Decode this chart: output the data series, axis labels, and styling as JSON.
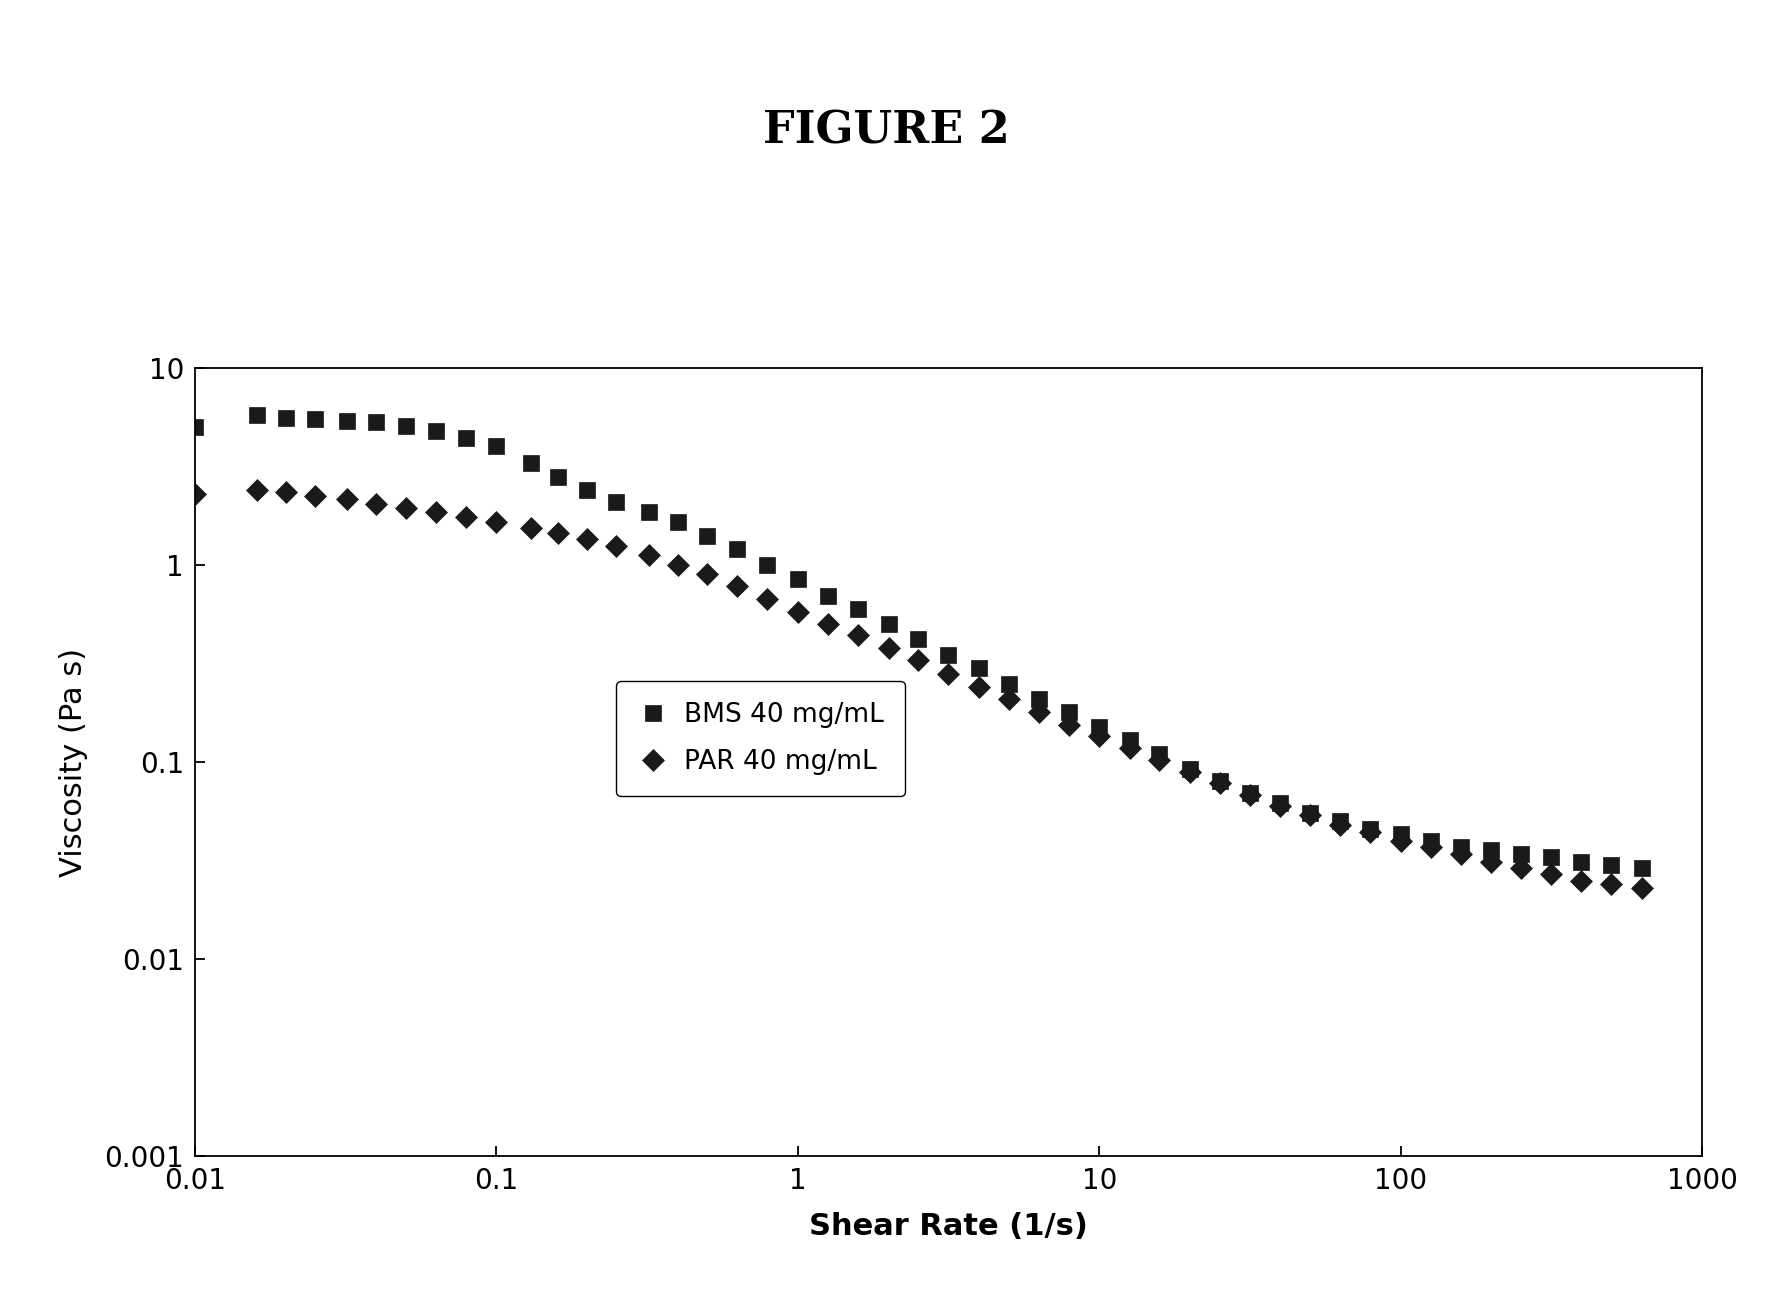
{
  "title": "FIGURE 2",
  "xlabel": "Shear Rate (1/s)",
  "ylabel": "Viscosity (Pa s)",
  "xlim": [
    0.01,
    1000
  ],
  "ylim": [
    0.001,
    10
  ],
  "background_color": "#ffffff",
  "bms_label": "BMS 40 mg/mL",
  "par_label": "PAR 40 mg/mL",
  "bms_color": "#1a1a1a",
  "par_color": "#1a1a1a",
  "bms_x": [
    0.01,
    0.016,
    0.02,
    0.025,
    0.032,
    0.04,
    0.05,
    0.063,
    0.079,
    0.1,
    0.13,
    0.16,
    0.2,
    0.25,
    0.32,
    0.4,
    0.5,
    0.63,
    0.79,
    1.0,
    1.26,
    1.58,
    2.0,
    2.51,
    3.16,
    3.98,
    5.01,
    6.31,
    7.94,
    10.0,
    12.6,
    15.8,
    20.0,
    25.1,
    31.6,
    39.8,
    50.1,
    63.1,
    79.4,
    100,
    126,
    158,
    200,
    251,
    316,
    398,
    500,
    630
  ],
  "bms_y": [
    5.0,
    5.8,
    5.6,
    5.5,
    5.4,
    5.3,
    5.1,
    4.8,
    4.4,
    4.0,
    3.3,
    2.8,
    2.4,
    2.1,
    1.85,
    1.65,
    1.4,
    1.2,
    1.0,
    0.85,
    0.7,
    0.6,
    0.5,
    0.42,
    0.35,
    0.3,
    0.25,
    0.21,
    0.18,
    0.15,
    0.13,
    0.11,
    0.092,
    0.08,
    0.07,
    0.062,
    0.055,
    0.05,
    0.046,
    0.043,
    0.04,
    0.037,
    0.036,
    0.034,
    0.033,
    0.031,
    0.03,
    0.029
  ],
  "par_x": [
    0.01,
    0.016,
    0.02,
    0.025,
    0.032,
    0.04,
    0.05,
    0.063,
    0.079,
    0.1,
    0.13,
    0.16,
    0.2,
    0.25,
    0.32,
    0.4,
    0.5,
    0.63,
    0.79,
    1.0,
    1.26,
    1.58,
    2.0,
    2.51,
    3.16,
    3.98,
    5.01,
    6.31,
    7.94,
    10.0,
    12.6,
    15.8,
    20.0,
    25.1,
    31.6,
    39.8,
    50.1,
    63.1,
    79.4,
    100,
    126,
    158,
    200,
    251,
    316,
    398,
    500,
    630
  ],
  "par_y": [
    2.3,
    2.4,
    2.35,
    2.25,
    2.15,
    2.05,
    1.95,
    1.85,
    1.75,
    1.65,
    1.55,
    1.45,
    1.35,
    1.25,
    1.12,
    1.0,
    0.9,
    0.78,
    0.67,
    0.58,
    0.5,
    0.44,
    0.38,
    0.33,
    0.28,
    0.24,
    0.21,
    0.18,
    0.155,
    0.135,
    0.118,
    0.102,
    0.089,
    0.078,
    0.068,
    0.06,
    0.054,
    0.048,
    0.044,
    0.04,
    0.037,
    0.034,
    0.031,
    0.029,
    0.027,
    0.025,
    0.024,
    0.023
  ],
  "title_fontsize": 32,
  "label_fontsize": 22,
  "tick_fontsize": 20,
  "legend_fontsize": 19,
  "bms_marker_size": 11,
  "par_marker_size": 11
}
